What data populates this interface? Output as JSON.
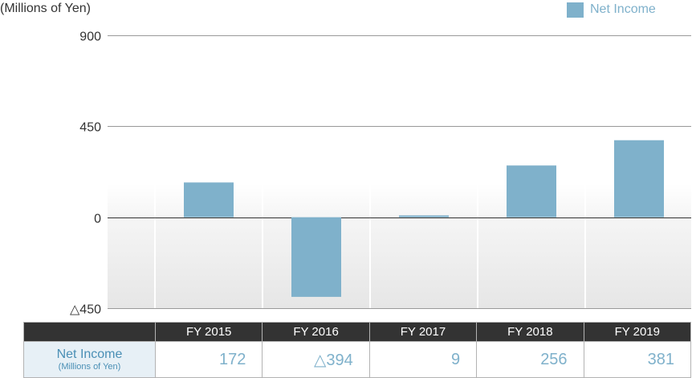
{
  "colors": {
    "bar": "#7fb1cb",
    "axis": "#333333",
    "gridline": "#999999"
  },
  "chart_data": {
    "type": "bar",
    "unit_label": "(Millions of Yen)",
    "legend": {
      "label": "Net Income",
      "position": "top-right"
    },
    "categories": [
      "FY 2015",
      "FY 2016",
      "FY 2017",
      "FY 2018",
      "FY 2019"
    ],
    "series": [
      {
        "name": "Net Income",
        "values": [
          172,
          -394,
          9,
          256,
          381
        ]
      }
    ],
    "ylim": [
      -450,
      900
    ],
    "yticks": [
      900,
      450,
      0,
      -450
    ],
    "ytick_labels": [
      "900",
      "450",
      "0",
      "△450"
    ],
    "grid": true,
    "table": {
      "row_title": "Net Income",
      "row_subtitle": "(Millions of Yen)",
      "values": [
        "172",
        "△394",
        "9",
        "256",
        "381"
      ]
    }
  }
}
